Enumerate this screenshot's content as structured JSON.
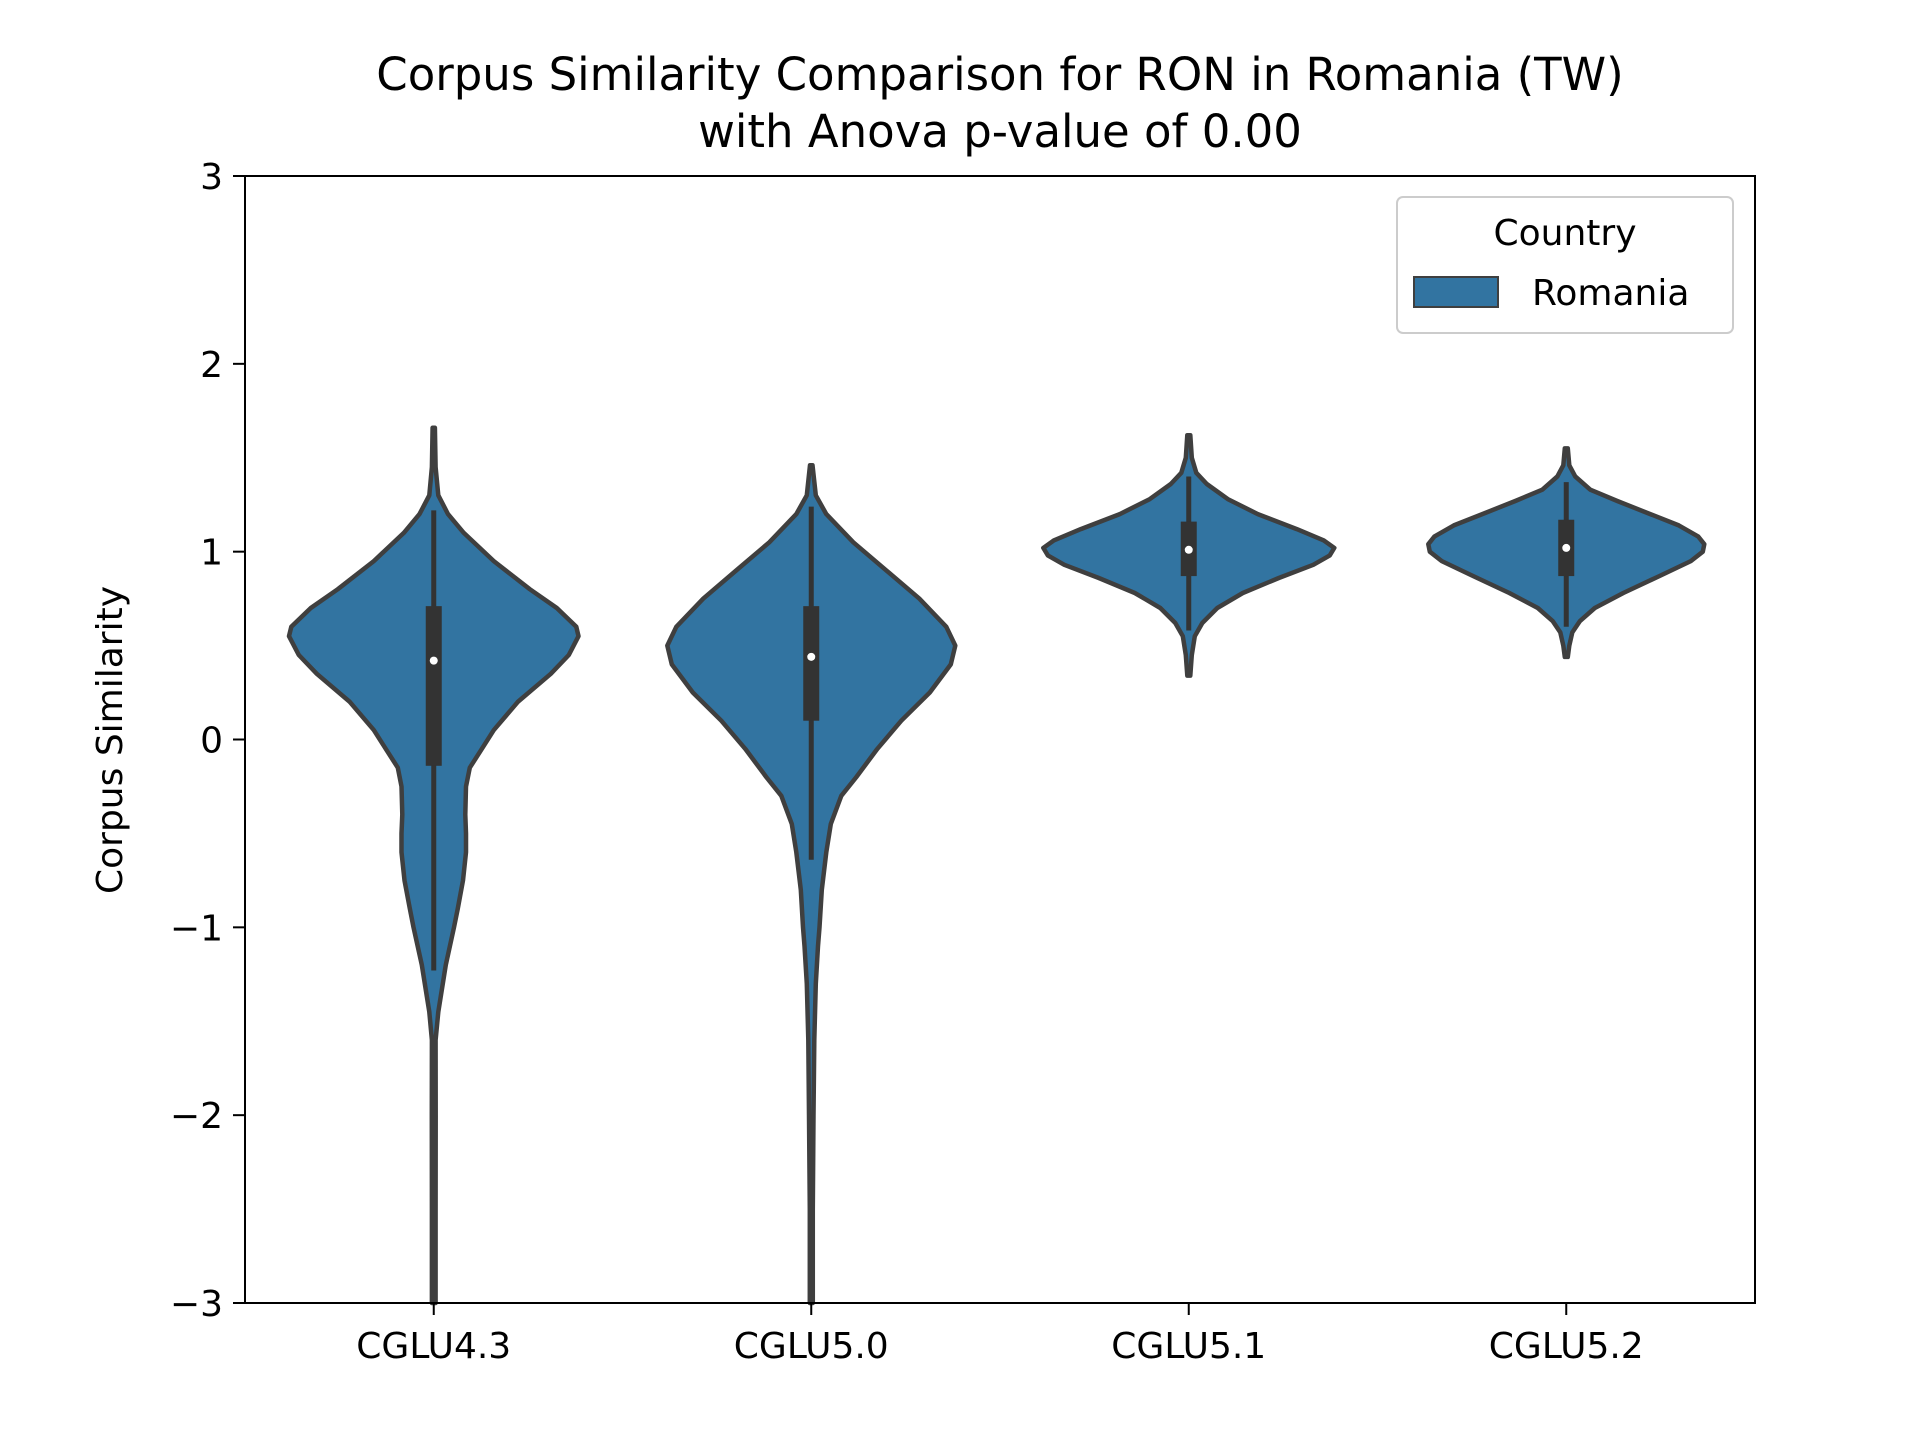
{
  "chart_data": {
    "type": "violin",
    "title": "Corpus Similarity Comparison for RON in Romania (TW)",
    "subtitle": "with Anova p-value of 0.00",
    "xlabel": "",
    "ylabel": "Corpus Similarity",
    "ylim": [
      -3,
      3
    ],
    "yticks": [
      -3,
      -2,
      -1,
      0,
      1,
      2,
      3
    ],
    "ytick_labels": [
      "−3",
      "−2",
      "−1",
      "0",
      "1",
      "2",
      "3"
    ],
    "categories": [
      "CGLU4.3",
      "CGLU5.0",
      "CGLU5.1",
      "CGLU5.2"
    ],
    "legend": {
      "title": "Country",
      "entries": [
        "Romania"
      ],
      "position": "top-right"
    },
    "colors": {
      "fill": "#3274a1",
      "edge": "#3f3f3f",
      "box": "#333333",
      "median": "#ffffff",
      "axis": "#000000"
    },
    "grid": false,
    "series": [
      {
        "name": "Romania",
        "violins": [
          {
            "category": "CGLU4.3",
            "min": -3.0,
            "max": 1.66,
            "q1": -0.14,
            "median": 0.42,
            "q3": 0.71,
            "whisker_low": -1.23,
            "whisker_high": 1.22,
            "density_profile": [
              [
                -3.0,
                0.012
              ],
              [
                -2.5,
                0.012
              ],
              [
                -2.0,
                0.013
              ],
              [
                -1.6,
                0.012
              ],
              [
                -1.45,
                0.03
              ],
              [
                -1.2,
                0.08
              ],
              [
                -1.0,
                0.135
              ],
              [
                -0.9,
                0.16
              ],
              [
                -0.75,
                0.195
              ],
              [
                -0.6,
                0.215
              ],
              [
                -0.5,
                0.215
              ],
              [
                -0.4,
                0.21
              ],
              [
                -0.25,
                0.215
              ],
              [
                -0.15,
                0.24
              ],
              [
                -0.05,
                0.32
              ],
              [
                0.05,
                0.4
              ],
              [
                0.2,
                0.56
              ],
              [
                0.35,
                0.78
              ],
              [
                0.45,
                0.9
              ],
              [
                0.55,
                0.965
              ],
              [
                0.6,
                0.95
              ],
              [
                0.7,
                0.82
              ],
              [
                0.8,
                0.64
              ],
              [
                0.95,
                0.4
              ],
              [
                1.1,
                0.2
              ],
              [
                1.2,
                0.095
              ],
              [
                1.3,
                0.03
              ],
              [
                1.45,
                0.012
              ],
              [
                1.66,
                0.008
              ]
            ]
          },
          {
            "category": "CGLU5.0",
            "min": -3.0,
            "max": 1.46,
            "q1": 0.1,
            "median": 0.44,
            "q3": 0.71,
            "whisker_low": -0.64,
            "whisker_high": 1.24,
            "density_profile": [
              [
                -3.0,
                0.01
              ],
              [
                -2.5,
                0.01
              ],
              [
                -2.0,
                0.015
              ],
              [
                -1.6,
                0.02
              ],
              [
                -1.3,
                0.03
              ],
              [
                -1.1,
                0.045
              ],
              [
                -1.0,
                0.055
              ],
              [
                -0.8,
                0.07
              ],
              [
                -0.6,
                0.1
              ],
              [
                -0.45,
                0.13
              ],
              [
                -0.3,
                0.2
              ],
              [
                -0.2,
                0.3
              ],
              [
                -0.05,
                0.44
              ],
              [
                0.1,
                0.6
              ],
              [
                0.25,
                0.79
              ],
              [
                0.4,
                0.93
              ],
              [
                0.5,
                0.96
              ],
              [
                0.6,
                0.9
              ],
              [
                0.75,
                0.72
              ],
              [
                0.9,
                0.5
              ],
              [
                1.05,
                0.28
              ],
              [
                1.2,
                0.1
              ],
              [
                1.3,
                0.03
              ],
              [
                1.46,
                0.008
              ]
            ]
          },
          {
            "category": "CGLU5.1",
            "min": 0.34,
            "max": 1.62,
            "q1": 0.87,
            "median": 1.01,
            "q3": 1.16,
            "whisker_low": 0.58,
            "whisker_high": 1.4,
            "density_profile": [
              [
                0.34,
                0.01
              ],
              [
                0.45,
                0.02
              ],
              [
                0.55,
                0.04
              ],
              [
                0.62,
                0.09
              ],
              [
                0.7,
                0.19
              ],
              [
                0.78,
                0.36
              ],
              [
                0.86,
                0.6
              ],
              [
                0.93,
                0.83
              ],
              [
                0.98,
                0.94
              ],
              [
                1.02,
                0.97
              ],
              [
                1.06,
                0.9
              ],
              [
                1.12,
                0.72
              ],
              [
                1.2,
                0.46
              ],
              [
                1.28,
                0.26
              ],
              [
                1.36,
                0.12
              ],
              [
                1.42,
                0.05
              ],
              [
                1.5,
                0.02
              ],
              [
                1.62,
                0.01
              ]
            ]
          },
          {
            "category": "CGLU5.2",
            "min": 0.44,
            "max": 1.55,
            "q1": 0.87,
            "median": 1.02,
            "q3": 1.17,
            "whisker_low": 0.6,
            "whisker_high": 1.37,
            "density_profile": [
              [
                0.44,
                0.01
              ],
              [
                0.5,
                0.02
              ],
              [
                0.57,
                0.04
              ],
              [
                0.63,
                0.09
              ],
              [
                0.7,
                0.19
              ],
              [
                0.78,
                0.38
              ],
              [
                0.87,
                0.62
              ],
              [
                0.95,
                0.83
              ],
              [
                1.0,
                0.91
              ],
              [
                1.04,
                0.92
              ],
              [
                1.08,
                0.88
              ],
              [
                1.14,
                0.75
              ],
              [
                1.2,
                0.56
              ],
              [
                1.27,
                0.34
              ],
              [
                1.33,
                0.16
              ],
              [
                1.4,
                0.06
              ],
              [
                1.46,
                0.02
              ],
              [
                1.55,
                0.01
              ]
            ]
          }
        ]
      }
    ]
  }
}
